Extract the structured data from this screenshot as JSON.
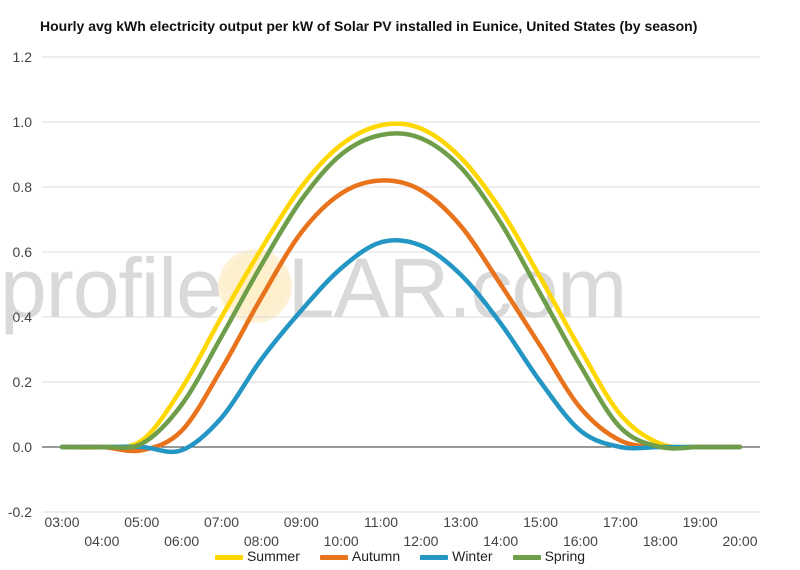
{
  "chart_data": {
    "type": "line",
    "title": "Hourly avg kWh electricity output per kW of Solar PV installed in Eunice, United States (by season)",
    "xlabel": "",
    "ylabel": "",
    "x": [
      "03:00",
      "04:00",
      "05:00",
      "06:00",
      "07:00",
      "08:00",
      "09:00",
      "10:00",
      "11:00",
      "12:00",
      "13:00",
      "14:00",
      "15:00",
      "16:00",
      "17:00",
      "18:00",
      "19:00",
      "20:00"
    ],
    "y_ticks": [
      "1.2",
      "1.0",
      "0.8",
      "0.6",
      "0.4",
      "0.2",
      "0.0",
      "-0.2"
    ],
    "ylim": [
      -0.2,
      1.2
    ],
    "grid": true,
    "legend_position": "bottom",
    "series": [
      {
        "name": "Summer",
        "color": "#ffd700",
        "values": [
          0,
          0,
          0.02,
          0.18,
          0.4,
          0.61,
          0.8,
          0.93,
          0.99,
          0.98,
          0.89,
          0.73,
          0.52,
          0.3,
          0.1,
          0.01,
          0,
          0
        ]
      },
      {
        "name": "Autumn",
        "color": "#e8731c",
        "values": [
          0,
          0,
          -0.01,
          0.05,
          0.24,
          0.46,
          0.66,
          0.78,
          0.82,
          0.79,
          0.68,
          0.5,
          0.31,
          0.12,
          0.02,
          0,
          0,
          0
        ]
      },
      {
        "name": "Winter",
        "color": "#2396c4",
        "values": [
          0,
          0,
          0,
          -0.01,
          0.09,
          0.27,
          0.42,
          0.55,
          0.63,
          0.62,
          0.53,
          0.38,
          0.2,
          0.05,
          0,
          0,
          0,
          0
        ]
      },
      {
        "name": "Spring",
        "color": "#6f9e4a",
        "values": [
          0,
          0,
          0.01,
          0.13,
          0.34,
          0.56,
          0.76,
          0.9,
          0.96,
          0.95,
          0.86,
          0.69,
          0.47,
          0.25,
          0.06,
          0,
          0,
          0
        ]
      }
    ]
  },
  "watermark": {
    "left": "profile",
    "right": "LAR.com"
  }
}
